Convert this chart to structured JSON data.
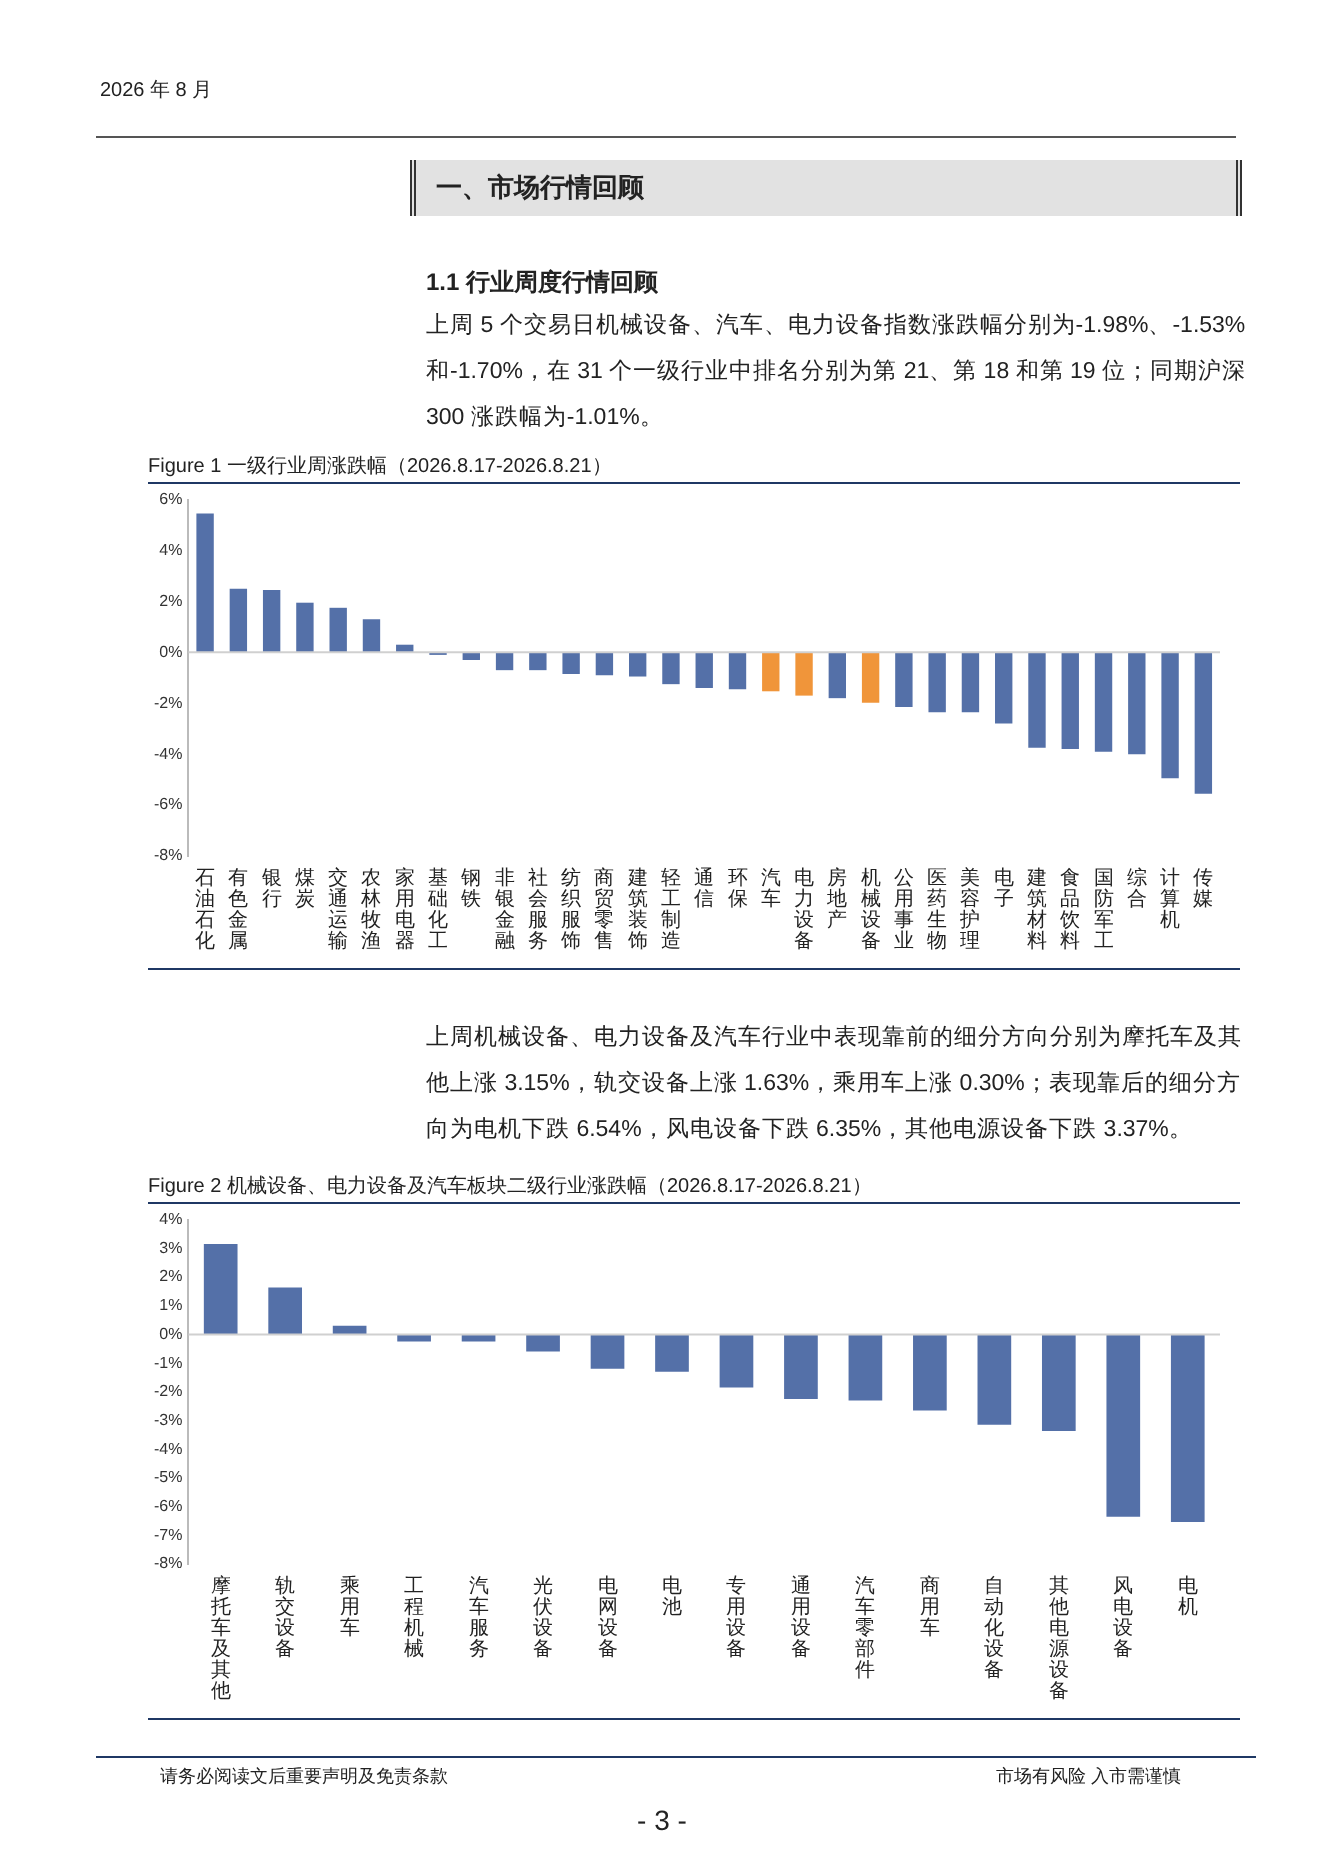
{
  "chart_data": [
    {
      "type": "bar",
      "title": "Figure 1 一级行业周涨跌幅（2026.8.17-2026.8.21）",
      "annotations": [
        "2026 年 8 月",
        "一、市场行情回顾",
        "1.1 行业周度行情回顾",
        "上周 5 个交易日机械设备、汽车、电力设备指数涨跌幅分别为-1.98%、-1.53%和-1.70%，在 31 个一级行业中排名分别为第 21、第 18 和第 19 位；同期沪深 300 涨跌幅为-1.01%。"
      ],
      "categories": [
        "石油石化",
        "有色金属",
        "银行",
        "煤炭",
        "交通运输",
        "农林牧渔",
        "家用电器",
        "基础化工",
        "钢铁",
        "非银金融",
        "社会服务",
        "纺织服饰",
        "商贸零售",
        "建筑装饰",
        "轻工制造",
        "通信",
        "环保",
        "汽车",
        "电力设备",
        "房地产",
        "机械设备",
        "公用事业",
        "医药生物",
        "美容护理",
        "电子",
        "建筑材料",
        "食品饮料",
        "国防军工",
        "综合",
        "计算机",
        "传媒"
      ],
      "values": [
        5.45,
        2.5,
        2.45,
        1.95,
        1.75,
        1.3,
        0.3,
        -0.1,
        -0.3,
        -0.7,
        -0.7,
        -0.85,
        -0.9,
        -0.95,
        -1.25,
        -1.4,
        -1.45,
        -1.53,
        -1.7,
        -1.8,
        -1.98,
        -2.15,
        -2.35,
        -2.35,
        -2.8,
        -3.75,
        -3.8,
        -3.9,
        -4.0,
        -4.95,
        -5.55
      ],
      "colors": [
        "#5470a8",
        "#5470a8",
        "#5470a8",
        "#5470a8",
        "#5470a8",
        "#5470a8",
        "#5470a8",
        "#5470a8",
        "#5470a8",
        "#5470a8",
        "#5470a8",
        "#5470a8",
        "#5470a8",
        "#5470a8",
        "#5470a8",
        "#5470a8",
        "#5470a8",
        "#f0953a",
        "#f0953a",
        "#5470a8",
        "#f0953a",
        "#5470a8",
        "#5470a8",
        "#5470a8",
        "#5470a8",
        "#5470a8",
        "#5470a8",
        "#5470a8",
        "#5470a8",
        "#5470a8",
        "#5470a8"
      ],
      "ylim": [
        -8,
        6
      ],
      "yticks": [
        {
          "value": 6,
          "label": "6%"
        },
        {
          "value": 4,
          "label": "4%"
        },
        {
          "value": 2,
          "label": "2%"
        },
        {
          "value": 0,
          "label": "0%"
        },
        {
          "value": -2,
          "label": "-2%"
        },
        {
          "value": -4,
          "label": "-4%"
        },
        {
          "value": -6,
          "label": "-6%"
        },
        {
          "value": -8,
          "label": "-8%"
        }
      ]
    },
    {
      "type": "bar",
      "title": "Figure 2 机械设备、电力设备及汽车板块二级行业涨跌幅（2026.8.17-2026.8.21）",
      "annotations": [
        "上周机械设备、电力设备及汽车行业中表现靠前的细分方向分别为摩托车及其他上涨 3.15%，轨交设备上涨 1.63%，乘用车上涨 0.30%；表现靠后的细分方向为电机下跌 6.54%，风电设备下跌 6.35%，其他电源设备下跌 3.37%。",
        "请务必阅读文后重要声明及免责条款",
        "市场有风险 入市需谨慎",
        "- 3 -"
      ],
      "categories": [
        "摩托车及其他",
        "轨交设备",
        "乘用车",
        "工程机械",
        "汽车服务",
        "光伏设备",
        "电网设备",
        "电池",
        "专用设备",
        "通用设备",
        "汽车零部件",
        "商用车",
        "自动化设备",
        "其他电源设备",
        "风电设备",
        "电机"
      ],
      "values": [
        3.15,
        1.63,
        0.3,
        -0.25,
        -0.25,
        -0.6,
        -1.2,
        -1.3,
        -1.85,
        -2.25,
        -2.3,
        -2.65,
        -3.15,
        -3.37,
        -6.35,
        -6.54
      ],
      "color": "#5470a8",
      "ylim": [
        -8,
        4
      ],
      "yticks": [
        {
          "value": 4,
          "label": "4%"
        },
        {
          "value": 3,
          "label": "3%"
        },
        {
          "value": 2,
          "label": "2%"
        },
        {
          "value": 1,
          "label": "1%"
        },
        {
          "value": 0,
          "label": "0%"
        },
        {
          "value": -1,
          "label": "-1%"
        },
        {
          "value": -2,
          "label": "-2%"
        },
        {
          "value": -3,
          "label": "-3%"
        },
        {
          "value": -4,
          "label": "-4%"
        },
        {
          "value": -5,
          "label": "-5%"
        },
        {
          "value": -6,
          "label": "-6%"
        },
        {
          "value": -7,
          "label": "-7%"
        },
        {
          "value": -8,
          "label": "-8%"
        }
      ]
    }
  ]
}
